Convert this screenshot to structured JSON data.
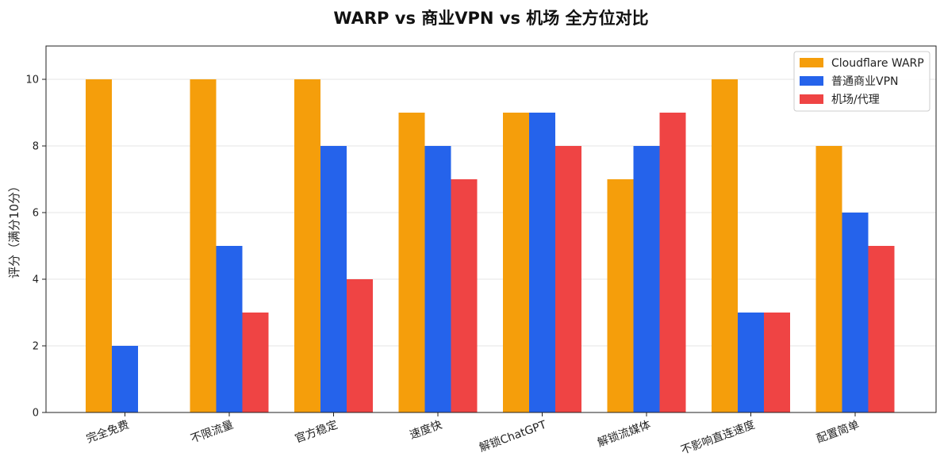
{
  "chart_data": {
    "type": "bar",
    "title": "WARP vs 商业VPN vs 机场 全方位对比",
    "xlabel": "",
    "ylabel": "评分（满分10分）",
    "ylim": [
      0,
      11
    ],
    "yticks": [
      0,
      2,
      4,
      6,
      8,
      10
    ],
    "grid": "y",
    "legend_position": "top-right",
    "categories": [
      "完全免费",
      "不限流量",
      "官方稳定",
      "速度快",
      "解锁ChatGPT",
      "解锁流媒体",
      "不影响直连速度",
      "配置简单"
    ],
    "series": [
      {
        "name": "Cloudflare WARP",
        "color": "#f59e0b",
        "values": [
          10,
          10,
          10,
          9,
          9,
          7,
          10,
          8
        ]
      },
      {
        "name": "普通商业VPN",
        "color": "#2563eb",
        "values": [
          2,
          5,
          8,
          8,
          9,
          8,
          3,
          6
        ]
      },
      {
        "name": "机场/代理",
        "color": "#ef4444",
        "values": [
          0,
          3,
          4,
          7,
          8,
          9,
          3,
          5
        ]
      }
    ]
  }
}
